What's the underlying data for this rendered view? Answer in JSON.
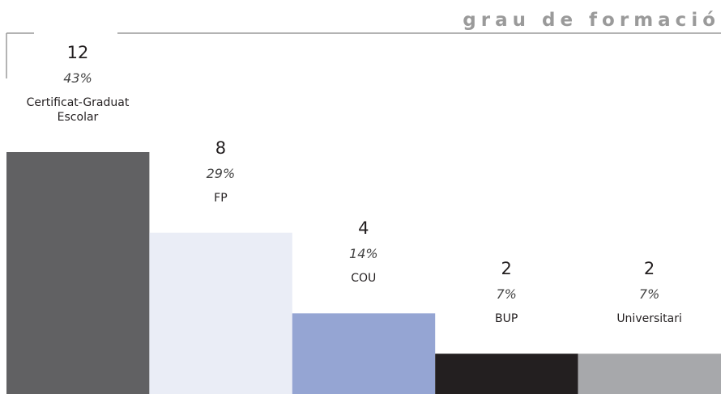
{
  "chart_data": {
    "type": "bar",
    "title": "grau de formació",
    "categories": [
      "Certificat-Graduat Escolar",
      "FP",
      "COU",
      "BUP",
      "Universitari"
    ],
    "values": [
      12,
      8,
      4,
      2,
      2
    ],
    "percent_labels": [
      "43%",
      "29%",
      "14%",
      "7%",
      "7%"
    ],
    "colors": [
      "#616163",
      "#eaedf6",
      "#95a5d3",
      "#231f20",
      "#a7a8ab"
    ],
    "ylim": [
      0,
      12
    ]
  }
}
